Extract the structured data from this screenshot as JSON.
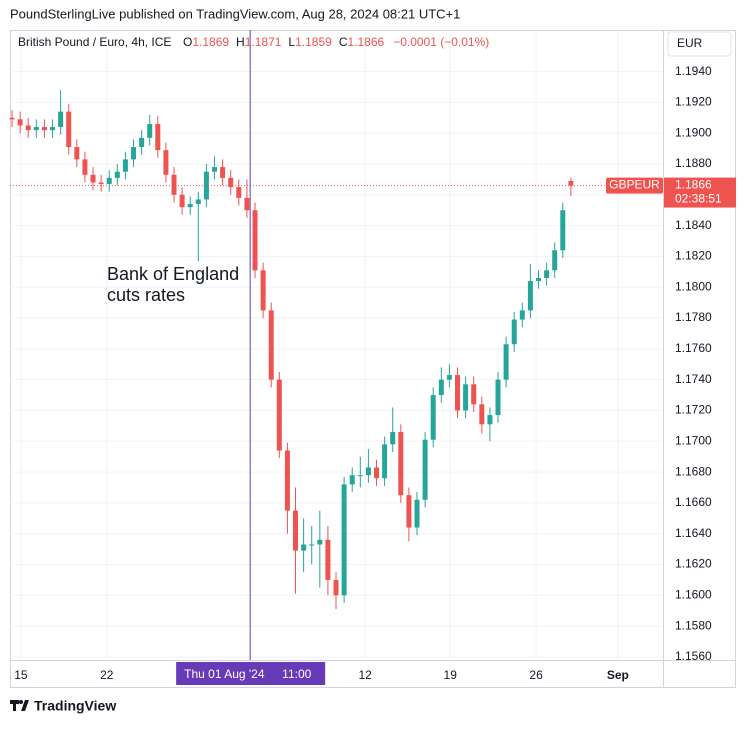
{
  "header": {
    "publisher": "PoundSterlingLive published on TradingView.com, Aug 28, 2024 08:21 UTC+1",
    "footer": "TradingView"
  },
  "chart_data": {
    "type": "candlestick",
    "symbol": "British Pound / Euro, 4h, ICE",
    "ohlc_letters": [
      "O",
      "H",
      "L",
      "C"
    ],
    "change": "−0.0001 (−0.01%)",
    "currency": "EUR",
    "ticker": "GBPEUR",
    "countdown": "02:38:51",
    "annotation": [
      "Bank of England",
      "cuts rates"
    ],
    "up_color": "#26a69a",
    "down_color": "#ef5350",
    "grid": true,
    "xlim": [
      -0.25,
      80.37
    ],
    "xticks": [
      {
        "value": 1.1,
        "label": "15"
      },
      {
        "value": 11.7,
        "label": "22"
      },
      {
        "value": 43.6,
        "label": "12"
      },
      {
        "value": 54.1,
        "label": "19"
      },
      {
        "value": 64.7,
        "label": "26"
      },
      {
        "value": 74.8,
        "label": "Sep"
      }
    ],
    "crosshair": {
      "value": 29.4,
      "date": "Thu 01 Aug '24",
      "time": "11:00",
      "color": "#673ab7"
    },
    "ylim": [
      1.1558,
      1.1967
    ],
    "yticks": [
      {
        "value": 1.156,
        "label": "1.1560"
      },
      {
        "value": 1.158,
        "label": "1.1580"
      },
      {
        "value": 1.16,
        "label": "1.1600"
      },
      {
        "value": 1.162,
        "label": "1.1620"
      },
      {
        "value": 1.164,
        "label": "1.1640"
      },
      {
        "value": 1.166,
        "label": "1.1660"
      },
      {
        "value": 1.168,
        "label": "1.1680"
      },
      {
        "value": 1.17,
        "label": "1.1700"
      },
      {
        "value": 1.172,
        "label": "1.1720"
      },
      {
        "value": 1.174,
        "label": "1.1740"
      },
      {
        "value": 1.176,
        "label": "1.1760"
      },
      {
        "value": 1.178,
        "label": "1.1780"
      },
      {
        "value": 1.18,
        "label": "1.1800"
      },
      {
        "value": 1.182,
        "label": "1.1820"
      },
      {
        "value": 1.184,
        "label": "1.1840"
      },
      {
        "value": 1.186,
        "label": "1.1860"
      },
      {
        "value": 1.188,
        "label": "1.1880"
      },
      {
        "value": 1.19,
        "label": "1.1900"
      },
      {
        "value": 1.192,
        "label": "1.1920"
      },
      {
        "value": 1.194,
        "label": "1.1940"
      }
    ],
    "open": [
      1.191,
      1.1909,
      1.1905,
      1.1902,
      1.1904,
      1.1902,
      1.1904,
      1.1914,
      1.1891,
      1.1883,
      1.1873,
      1.1868,
      1.1867,
      1.1871,
      1.1875,
      1.1883,
      1.1891,
      1.1897,
      1.1906,
      1.1889,
      1.1873,
      1.186,
      1.1852,
      1.1854,
      1.1857,
      1.1875,
      1.1878,
      1.1871,
      1.1865,
      1.1858,
      1.185,
      1.1811,
      1.1785,
      1.174,
      1.1694,
      1.1655,
      1.1629,
      1.1633,
      1.1633,
      1.1636,
      1.161,
      1.16,
      1.1672,
      1.1678,
      1.1678,
      1.1683,
      1.1676,
      1.1698,
      1.1706,
      1.1665,
      1.1644,
      1.1662,
      1.1701,
      1.173,
      1.174,
      1.1743,
      1.172,
      1.1737,
      1.1724,
      1.1711,
      1.1717,
      1.174,
      1.1763,
      1.1779,
      1.1785,
      1.1804,
      1.1806,
      1.1811,
      1.1824,
      1.1869
    ],
    "high": [
      1.1915,
      1.1914,
      1.191,
      1.1909,
      1.1909,
      1.1909,
      1.1928,
      1.1919,
      1.1896,
      1.1888,
      1.1878,
      1.1873,
      1.1876,
      1.188,
      1.1888,
      1.1896,
      1.1902,
      1.1912,
      1.1911,
      1.1894,
      1.1878,
      1.1865,
      1.1859,
      1.1862,
      1.188,
      1.1885,
      1.1883,
      1.1876,
      1.187,
      1.187,
      1.1855,
      1.1816,
      1.179,
      1.1745,
      1.1699,
      1.167,
      1.165,
      1.1645,
      1.1655,
      1.1645,
      1.1615,
      1.1677,
      1.1683,
      1.169,
      1.1695,
      1.1688,
      1.1703,
      1.1722,
      1.1711,
      1.167,
      1.1667,
      1.1706,
      1.1735,
      1.1748,
      1.175,
      1.1748,
      1.1742,
      1.1742,
      1.1729,
      1.1722,
      1.1745,
      1.1768,
      1.1784,
      1.179,
      1.1815,
      1.1811,
      1.1816,
      1.1829,
      1.1855,
      1.1871
    ],
    "low": [
      1.1904,
      1.19,
      1.1897,
      1.1897,
      1.1897,
      1.1897,
      1.1899,
      1.1886,
      1.1878,
      1.1868,
      1.1863,
      1.1862,
      1.1862,
      1.1866,
      1.187,
      1.1878,
      1.1886,
      1.1892,
      1.1884,
      1.1868,
      1.1855,
      1.1847,
      1.1847,
      1.1817,
      1.1852,
      1.187,
      1.1866,
      1.186,
      1.1853,
      1.1845,
      1.1806,
      1.178,
      1.1735,
      1.1689,
      1.164,
      1.1601,
      1.1615,
      1.162,
      1.1605,
      1.16,
      1.1591,
      1.1595,
      1.1667,
      1.167,
      1.1673,
      1.1671,
      1.1671,
      1.1693,
      1.166,
      1.1635,
      1.1639,
      1.1657,
      1.1696,
      1.1725,
      1.1735,
      1.1715,
      1.1715,
      1.1719,
      1.1705,
      1.17,
      1.1712,
      1.1735,
      1.1758,
      1.1774,
      1.178,
      1.1799,
      1.1801,
      1.1806,
      1.1819,
      1.1859
    ],
    "close": [
      1.1909,
      1.1905,
      1.1902,
      1.1904,
      1.1902,
      1.1904,
      1.1914,
      1.1891,
      1.1883,
      1.1873,
      1.1868,
      1.1867,
      1.1871,
      1.1875,
      1.1883,
      1.1891,
      1.1897,
      1.1906,
      1.1889,
      1.1873,
      1.186,
      1.1852,
      1.1854,
      1.1857,
      1.1875,
      1.1878,
      1.1871,
      1.1865,
      1.1858,
      1.185,
      1.1811,
      1.1785,
      1.174,
      1.1694,
      1.1655,
      1.1629,
      1.1633,
      1.1633,
      1.1636,
      1.161,
      1.16,
      1.1672,
      1.1678,
      1.1678,
      1.1683,
      1.1676,
      1.1698,
      1.1706,
      1.1665,
      1.1644,
      1.1662,
      1.1701,
      1.173,
      1.174,
      1.1743,
      1.172,
      1.1737,
      1.1724,
      1.1711,
      1.1717,
      1.174,
      1.1763,
      1.1779,
      1.1785,
      1.1804,
      1.1806,
      1.1811,
      1.1824,
      1.185,
      1.1866
    ]
  }
}
